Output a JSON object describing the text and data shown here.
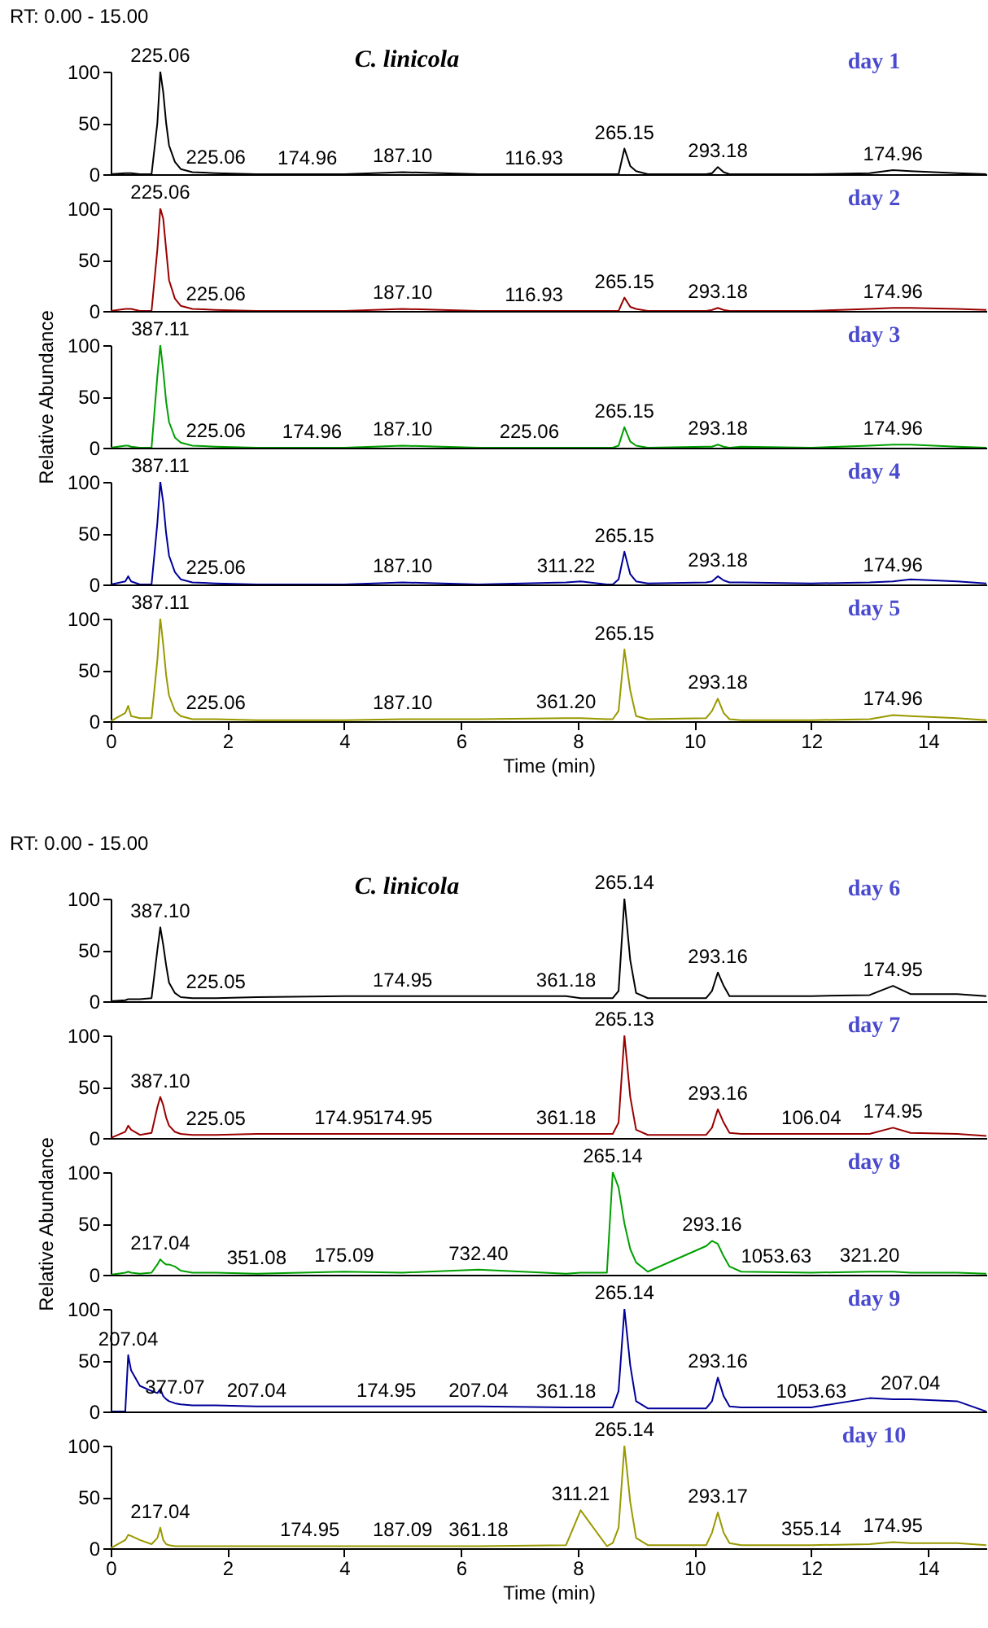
{
  "chart_data": [
    {
      "type": "line",
      "title": "day 1",
      "subtitle": "C. linicola",
      "annotations": [
        "RT: 0.00 - 15.00",
        {
          "text": "225.06",
          "x": 0.85,
          "y": 100
        },
        {
          "text": "225.06",
          "x": 1.8,
          "y": 1
        },
        {
          "text": "174.96",
          "x": 3.37,
          "y": 0
        },
        {
          "text": "187.10",
          "x": 5.0,
          "y": 2
        },
        {
          "text": "116.93",
          "x": 7.25,
          "y": 0
        },
        {
          "text": "265.15",
          "x": 8.8,
          "y": 25
        },
        {
          "text": "293.18",
          "x": 10.4,
          "y": 7
        },
        {
          "text": "174.96",
          "x": 13.4,
          "y": 4
        }
      ],
      "x": [
        0,
        0.25,
        0.3,
        0.35,
        0.5,
        0.7,
        0.8,
        0.85,
        0.9,
        0.95,
        1.0,
        1.1,
        1.2,
        1.4,
        1.8,
        2.5,
        4.0,
        5.0,
        6.3,
        7.8,
        8.05,
        8.5,
        8.6,
        8.7,
        8.8,
        8.9,
        9.0,
        9.2,
        10.2,
        10.3,
        10.4,
        10.5,
        10.6,
        10.8,
        12.0,
        13.0,
        13.4,
        13.7,
        14.5,
        15
      ],
      "series": [
        {
          "color": "#000000",
          "values": [
            0,
            1,
            1,
            1,
            0,
            0,
            50,
            100,
            80,
            50,
            28,
            12,
            5,
            2,
            1,
            0,
            0,
            2,
            0,
            0,
            0,
            0,
            0,
            0,
            25,
            8,
            3,
            0,
            0,
            1,
            7,
            2,
            0,
            0,
            0,
            1,
            4,
            3,
            1,
            0
          ]
        }
      ],
      "xlim": [
        0,
        15
      ],
      "xticks": [
        0,
        2,
        4,
        6,
        8,
        10,
        12,
        14
      ],
      "ylim": [
        0,
        100
      ],
      "yticks": [
        0,
        50,
        100
      ],
      "tick_labels": "y"
    },
    {
      "type": "line",
      "title": "day 2",
      "annotations": [
        {
          "text": "225.06",
          "x": 0.85,
          "y": 100
        },
        {
          "text": "225.06",
          "x": 1.8,
          "y": 1
        },
        {
          "text": "187.10",
          "x": 5.0,
          "y": 2
        },
        {
          "text": "116.93",
          "x": 7.25,
          "y": 0
        },
        {
          "text": "265.15",
          "x": 8.8,
          "y": 13
        },
        {
          "text": "293.18",
          "x": 10.4,
          "y": 3
        },
        {
          "text": "174.96",
          "x": 13.4,
          "y": 3
        }
      ],
      "x": [
        0,
        0.25,
        0.3,
        0.35,
        0.5,
        0.7,
        0.8,
        0.85,
        0.9,
        0.95,
        1.0,
        1.1,
        1.2,
        1.4,
        1.8,
        2.5,
        4.0,
        5.0,
        6.3,
        7.8,
        8.05,
        8.5,
        8.6,
        8.7,
        8.8,
        8.9,
        9.0,
        9.2,
        10.2,
        10.3,
        10.4,
        10.5,
        10.6,
        10.8,
        12.0,
        13.0,
        13.4,
        13.7,
        14.5,
        15
      ],
      "series": [
        {
          "color": "#990000",
          "values": [
            0,
            2,
            2,
            2,
            0,
            0,
            60,
            100,
            90,
            60,
            30,
            12,
            5,
            2,
            1,
            0,
            0,
            2,
            0,
            0,
            0,
            0,
            0,
            0,
            13,
            4,
            2,
            0,
            0,
            1,
            3,
            1,
            0,
            0,
            0,
            2,
            3,
            3,
            2,
            1
          ]
        }
      ],
      "xlim": [
        0,
        15
      ],
      "xticks": [
        0,
        2,
        4,
        6,
        8,
        10,
        12,
        14
      ],
      "ylim": [
        0,
        100
      ],
      "yticks": [
        0,
        50,
        100
      ],
      "tick_labels": "y"
    },
    {
      "type": "line",
      "title": "day 3",
      "ylabel": "Relative Abundance",
      "annotations": [
        {
          "text": "387.11",
          "x": 0.85,
          "y": 100
        },
        {
          "text": "225.06",
          "x": 1.8,
          "y": 1
        },
        {
          "text": "174.96",
          "x": 3.45,
          "y": 0
        },
        {
          "text": "187.10",
          "x": 5.0,
          "y": 2
        },
        {
          "text": "225.06",
          "x": 7.17,
          "y": 0
        },
        {
          "text": "265.15",
          "x": 8.8,
          "y": 20
        },
        {
          "text": "293.18",
          "x": 10.4,
          "y": 3
        },
        {
          "text": "174.96",
          "x": 13.4,
          "y": 3
        }
      ],
      "x": [
        0,
        0.25,
        0.3,
        0.35,
        0.5,
        0.7,
        0.8,
        0.85,
        0.9,
        0.95,
        1.0,
        1.1,
        1.2,
        1.4,
        1.8,
        2.5,
        4.0,
        5.0,
        6.3,
        7.8,
        8.05,
        8.5,
        8.6,
        8.7,
        8.8,
        8.9,
        9.0,
        9.2,
        10.2,
        10.3,
        10.4,
        10.5,
        10.6,
        10.8,
        12.0,
        13.0,
        13.4,
        13.7,
        14.5,
        15
      ],
      "series": [
        {
          "color": "#00a000",
          "values": [
            0,
            2,
            2,
            1,
            0,
            0,
            70,
            100,
            75,
            45,
            25,
            10,
            5,
            2,
            1,
            0,
            0,
            2,
            0,
            0,
            0,
            0,
            0,
            2,
            20,
            6,
            2,
            0,
            1,
            1,
            3,
            1,
            0,
            1,
            0,
            2,
            3,
            3,
            1,
            0
          ]
        }
      ],
      "xlim": [
        0,
        15
      ],
      "xticks": [
        0,
        2,
        4,
        6,
        8,
        10,
        12,
        14
      ],
      "ylim": [
        0,
        100
      ],
      "yticks": [
        0,
        50,
        100
      ],
      "tick_labels": "y"
    },
    {
      "type": "line",
      "title": "day 4",
      "annotations": [
        {
          "text": "387.11",
          "x": 0.85,
          "y": 100
        },
        {
          "text": "225.06",
          "x": 1.8,
          "y": 1
        },
        {
          "text": "187.10",
          "x": 5.0,
          "y": 2
        },
        {
          "text": "311.22",
          "x": 7.8,
          "y": 2
        },
        {
          "text": "265.15",
          "x": 8.8,
          "y": 32
        },
        {
          "text": "293.18",
          "x": 10.4,
          "y": 8
        },
        {
          "text": "174.96",
          "x": 13.4,
          "y": 3
        }
      ],
      "x": [
        0,
        0.25,
        0.3,
        0.35,
        0.5,
        0.7,
        0.8,
        0.85,
        0.9,
        0.95,
        1.0,
        1.1,
        1.2,
        1.4,
        1.8,
        2.5,
        4.0,
        5.0,
        6.3,
        7.8,
        8.05,
        8.5,
        8.6,
        8.7,
        8.8,
        8.9,
        9.0,
        9.2,
        10.2,
        10.3,
        10.4,
        10.5,
        10.6,
        10.8,
        12.0,
        13.0,
        13.4,
        13.7,
        14.5,
        15
      ],
      "series": [
        {
          "color": "#000099",
          "values": [
            0,
            3,
            8,
            3,
            0,
            0,
            60,
            100,
            80,
            50,
            28,
            12,
            5,
            2,
            1,
            0,
            0,
            2,
            0,
            2,
            3,
            0,
            0,
            5,
            32,
            10,
            3,
            1,
            2,
            3,
            8,
            4,
            2,
            2,
            1,
            2,
            3,
            5,
            3,
            1
          ]
        }
      ],
      "xlim": [
        0,
        15
      ],
      "xticks": [
        0,
        2,
        4,
        6,
        8,
        10,
        12,
        14
      ],
      "ylim": [
        0,
        100
      ],
      "yticks": [
        0,
        50,
        100
      ],
      "tick_labels": "y"
    },
    {
      "type": "line",
      "title": "day 5",
      "xlabel": "Time (min)",
      "annotations": [
        {
          "text": "387.11",
          "x": 0.85,
          "y": 100
        },
        {
          "text": "225.06",
          "x": 1.8,
          "y": 2
        },
        {
          "text": "187.10",
          "x": 5.0,
          "y": 2
        },
        {
          "text": "361.20",
          "x": 7.8,
          "y": 3
        },
        {
          "text": "265.15",
          "x": 8.8,
          "y": 70
        },
        {
          "text": "293.18",
          "x": 10.4,
          "y": 22
        },
        {
          "text": "174.96",
          "x": 13.4,
          "y": 6
        }
      ],
      "x": [
        0,
        0.25,
        0.3,
        0.35,
        0.5,
        0.7,
        0.8,
        0.85,
        0.9,
        0.95,
        1.0,
        1.1,
        1.2,
        1.4,
        1.8,
        2.5,
        4.0,
        5.0,
        6.3,
        7.8,
        8.05,
        8.5,
        8.6,
        8.7,
        8.8,
        8.9,
        9.0,
        9.2,
        10.2,
        10.3,
        10.4,
        10.5,
        10.6,
        10.8,
        12.0,
        13.0,
        13.4,
        13.7,
        14.5,
        15
      ],
      "series": [
        {
          "color": "#999900",
          "values": [
            0,
            8,
            15,
            5,
            3,
            3,
            60,
            100,
            75,
            45,
            25,
            10,
            5,
            2,
            2,
            1,
            1,
            2,
            2,
            3,
            3,
            2,
            2,
            10,
            70,
            30,
            5,
            2,
            3,
            10,
            22,
            8,
            2,
            1,
            1,
            2,
            6,
            5,
            3,
            1
          ]
        }
      ],
      "xlim": [
        0,
        15
      ],
      "xticks": [
        0,
        2,
        4,
        6,
        8,
        10,
        12,
        14
      ],
      "ylim": [
        0,
        100
      ],
      "yticks": [
        0,
        50,
        100
      ]
    },
    {
      "type": "line",
      "title": "day 6",
      "subtitle": "C. linicola",
      "annotations": [
        "RT: 0.00 - 15.00",
        {
          "text": "387.10",
          "x": 0.85,
          "y": 72
        },
        {
          "text": "225.05",
          "x": 1.8,
          "y": 3
        },
        {
          "text": "174.95",
          "x": 5.0,
          "y": 5
        },
        {
          "text": "361.18",
          "x": 7.8,
          "y": 5
        },
        {
          "text": "265.14",
          "x": 8.8,
          "y": 100
        },
        {
          "text": "293.16",
          "x": 10.4,
          "y": 28
        },
        {
          "text": "174.95",
          "x": 13.4,
          "y": 15
        }
      ],
      "x": [
        0,
        0.25,
        0.3,
        0.35,
        0.5,
        0.7,
        0.8,
        0.85,
        0.9,
        0.95,
        1.0,
        1.1,
        1.2,
        1.4,
        1.8,
        2.5,
        4.0,
        5.0,
        6.3,
        7.8,
        8.05,
        8.5,
        8.6,
        8.7,
        8.8,
        8.9,
        9.0,
        9.2,
        10.2,
        10.3,
        10.4,
        10.5,
        10.6,
        10.8,
        12.0,
        13.0,
        13.4,
        13.7,
        14.5,
        15
      ],
      "series": [
        {
          "color": "#000000",
          "values": [
            0,
            1,
            2,
            2,
            2,
            3,
            50,
            72,
            55,
            35,
            18,
            8,
            4,
            3,
            3,
            4,
            5,
            5,
            5,
            5,
            3,
            3,
            3,
            10,
            100,
            40,
            8,
            3,
            3,
            10,
            28,
            15,
            5,
            5,
            5,
            6,
            15,
            7,
            7,
            5
          ]
        }
      ],
      "xlim": [
        0,
        15
      ],
      "xticks": [
        0,
        2,
        4,
        6,
        8,
        10,
        12,
        14
      ],
      "ylim": [
        0,
        100
      ],
      "yticks": [
        0,
        50,
        100
      ],
      "tick_labels": "y"
    },
    {
      "type": "line",
      "title": "day 7",
      "annotations": [
        {
          "text": "265.13",
          "x": 8.8,
          "y": 100
        },
        {
          "text": "387.10",
          "x": 0.85,
          "y": 40
        },
        {
          "text": "225.05",
          "x": 1.8,
          "y": 3
        },
        {
          "text": "174.95",
          "x": 4.0,
          "y": 4
        },
        {
          "text": "174.95",
          "x": 5.0,
          "y": 4
        },
        {
          "text": "361.18",
          "x": 7.8,
          "y": 4
        },
        {
          "text": "293.16",
          "x": 10.4,
          "y": 28
        },
        {
          "text": "106.04",
          "x": 12.0,
          "y": 4
        },
        {
          "text": "174.95",
          "x": 13.4,
          "y": 10
        }
      ],
      "x": [
        0,
        0.25,
        0.3,
        0.35,
        0.5,
        0.7,
        0.8,
        0.85,
        0.9,
        0.95,
        1.0,
        1.1,
        1.2,
        1.4,
        1.8,
        2.5,
        4.0,
        5.0,
        6.3,
        7.8,
        8.05,
        8.5,
        8.6,
        8.7,
        8.8,
        8.9,
        9.0,
        9.2,
        10.2,
        10.3,
        10.4,
        10.5,
        10.6,
        10.8,
        12.0,
        13.0,
        13.4,
        13.7,
        14.5,
        15
      ],
      "series": [
        {
          "color": "#990000",
          "values": [
            0,
            6,
            12,
            8,
            3,
            5,
            30,
            40,
            32,
            20,
            12,
            6,
            4,
            3,
            3,
            4,
            4,
            4,
            4,
            4,
            4,
            4,
            4,
            15,
            100,
            40,
            8,
            3,
            3,
            10,
            28,
            15,
            5,
            4,
            4,
            4,
            10,
            5,
            4,
            2
          ]
        }
      ],
      "xlim": [
        0,
        15
      ],
      "xticks": [
        0,
        2,
        4,
        6,
        8,
        10,
        12,
        14
      ],
      "ylim": [
        0,
        100
      ],
      "yticks": [
        0,
        50,
        100
      ],
      "tick_labels": "y"
    },
    {
      "type": "line",
      "title": "day 8",
      "ylabel": "Relative Abundance",
      "annotations": [
        {
          "text": "265.14",
          "x": 8.6,
          "y": 100
        },
        {
          "text": "217.04",
          "x": 0.85,
          "y": 15
        },
        {
          "text": "351.08",
          "x": 2.5,
          "y": 1
        },
        {
          "text": "175.09",
          "x": 4.0,
          "y": 3
        },
        {
          "text": "732.40",
          "x": 6.3,
          "y": 5
        },
        {
          "text": "293.16",
          "x": 10.3,
          "y": 33
        },
        {
          "text": "1053.63",
          "x": 11.4,
          "y": 2.5
        },
        {
          "text": "321.20",
          "x": 13.0,
          "y": 3
        }
      ],
      "x": [
        0,
        0.25,
        0.3,
        0.35,
        0.5,
        0.7,
        0.8,
        0.85,
        0.9,
        0.95,
        1.0,
        1.1,
        1.2,
        1.4,
        1.8,
        2.5,
        4.0,
        5.0,
        6.3,
        7.8,
        8.05,
        8.5,
        8.6,
        8.7,
        8.8,
        8.9,
        9.0,
        9.2,
        10.2,
        10.3,
        10.4,
        10.5,
        10.6,
        10.8,
        12.0,
        13.0,
        13.4,
        13.7,
        14.5,
        15
      ],
      "series": [
        {
          "color": "#00a000",
          "values": [
            0,
            2,
            3,
            2,
            1,
            2,
            10,
            15,
            12,
            10,
            10,
            8,
            4,
            2,
            2,
            1,
            3,
            2,
            5,
            1,
            2,
            2,
            100,
            85,
            50,
            25,
            12,
            3,
            28,
            33,
            30,
            18,
            8,
            3,
            2,
            3,
            3,
            2,
            2,
            1
          ]
        }
      ],
      "xlim": [
        0,
        15
      ],
      "xticks": [
        0,
        2,
        4,
        6,
        8,
        10,
        12,
        14
      ],
      "ylim": [
        0,
        100
      ],
      "yticks": [
        0,
        50,
        100
      ],
      "tick_labels": "y"
    },
    {
      "type": "line",
      "title": "day 9",
      "annotations": [
        {
          "text": "265.14",
          "x": 8.8,
          "y": 100
        },
        {
          "text": "207.04",
          "x": 0.3,
          "y": 55
        },
        {
          "text": "377.07",
          "x": 1.1,
          "y": 8
        },
        {
          "text": "207.04",
          "x": 2.5,
          "y": 5
        },
        {
          "text": "174.95",
          "x": 4.72,
          "y": 5
        },
        {
          "text": "207.04",
          "x": 6.3,
          "y": 5
        },
        {
          "text": "361.18",
          "x": 7.8,
          "y": 4
        },
        {
          "text": "293.16",
          "x": 10.4,
          "y": 33
        },
        {
          "text": "1053.63",
          "x": 12.0,
          "y": 4
        },
        {
          "text": "207.04",
          "x": 13.7,
          "y": 12
        }
      ],
      "x": [
        0,
        0.25,
        0.3,
        0.35,
        0.5,
        0.7,
        0.8,
        0.85,
        0.9,
        0.95,
        1.0,
        1.1,
        1.2,
        1.4,
        1.8,
        2.5,
        4.0,
        5.0,
        6.3,
        7.8,
        8.05,
        8.5,
        8.6,
        8.7,
        8.8,
        8.9,
        9.0,
        9.2,
        10.2,
        10.3,
        10.4,
        10.5,
        10.6,
        10.8,
        12.0,
        13.0,
        13.4,
        13.7,
        14.5,
        15
      ],
      "series": [
        {
          "color": "#000099",
          "values": [
            0,
            0,
            55,
            40,
            25,
            20,
            18,
            22,
            15,
            12,
            10,
            8,
            7,
            6,
            6,
            5,
            5,
            5,
            5,
            4,
            4,
            4,
            4,
            20,
            100,
            45,
            10,
            3,
            3,
            10,
            33,
            15,
            5,
            4,
            4,
            13,
            12,
            12,
            10,
            0
          ]
        }
      ],
      "xlim": [
        0,
        15
      ],
      "xticks": [
        0,
        2,
        4,
        6,
        8,
        10,
        12,
        14
      ],
      "ylim": [
        0,
        100
      ],
      "yticks": [
        0,
        50,
        100
      ],
      "tick_labels": "y"
    },
    {
      "type": "line",
      "title": "day 10",
      "xlabel": "Time (min)",
      "annotations": [
        {
          "text": "265.14",
          "x": 8.8,
          "y": 100
        },
        {
          "text": "217.04",
          "x": 0.85,
          "y": 20
        },
        {
          "text": "174.95",
          "x": 3.41,
          "y": 2
        },
        {
          "text": "187.09",
          "x": 5.0,
          "y": 2
        },
        {
          "text": "311.21",
          "x": 8.05,
          "y": 37
        },
        {
          "text": "361.18",
          "x": 6.3,
          "y": 2
        },
        {
          "text": "293.17",
          "x": 10.4,
          "y": 35
        },
        {
          "text": "355.14",
          "x": 12.0,
          "y": 3
        },
        {
          "text": "174.95",
          "x": 13.4,
          "y": 6
        }
      ],
      "x": [
        0,
        0.25,
        0.3,
        0.35,
        0.5,
        0.7,
        0.8,
        0.85,
        0.9,
        0.95,
        1.0,
        1.1,
        1.2,
        1.4,
        1.8,
        2.5,
        4.0,
        5.0,
        6.3,
        7.8,
        8.05,
        8.5,
        8.6,
        8.7,
        8.8,
        8.9,
        9.0,
        9.2,
        10.2,
        10.3,
        10.4,
        10.5,
        10.6,
        10.8,
        12.0,
        13.0,
        13.4,
        13.7,
        14.5,
        15
      ],
      "series": [
        {
          "color": "#999900",
          "values": [
            0,
            8,
            13,
            12,
            8,
            4,
            10,
            20,
            8,
            4,
            3,
            2,
            2,
            2,
            2,
            2,
            2,
            2,
            2,
            3,
            37,
            2,
            5,
            20,
            100,
            45,
            10,
            3,
            3,
            15,
            35,
            15,
            5,
            3,
            3,
            4,
            6,
            5,
            5,
            3
          ]
        }
      ],
      "xlim": [
        0,
        15
      ],
      "xticks": [
        0,
        2,
        4,
        6,
        8,
        10,
        12,
        14
      ],
      "ylim": [
        0,
        100
      ],
      "yticks": [
        0,
        50,
        100
      ]
    }
  ]
}
